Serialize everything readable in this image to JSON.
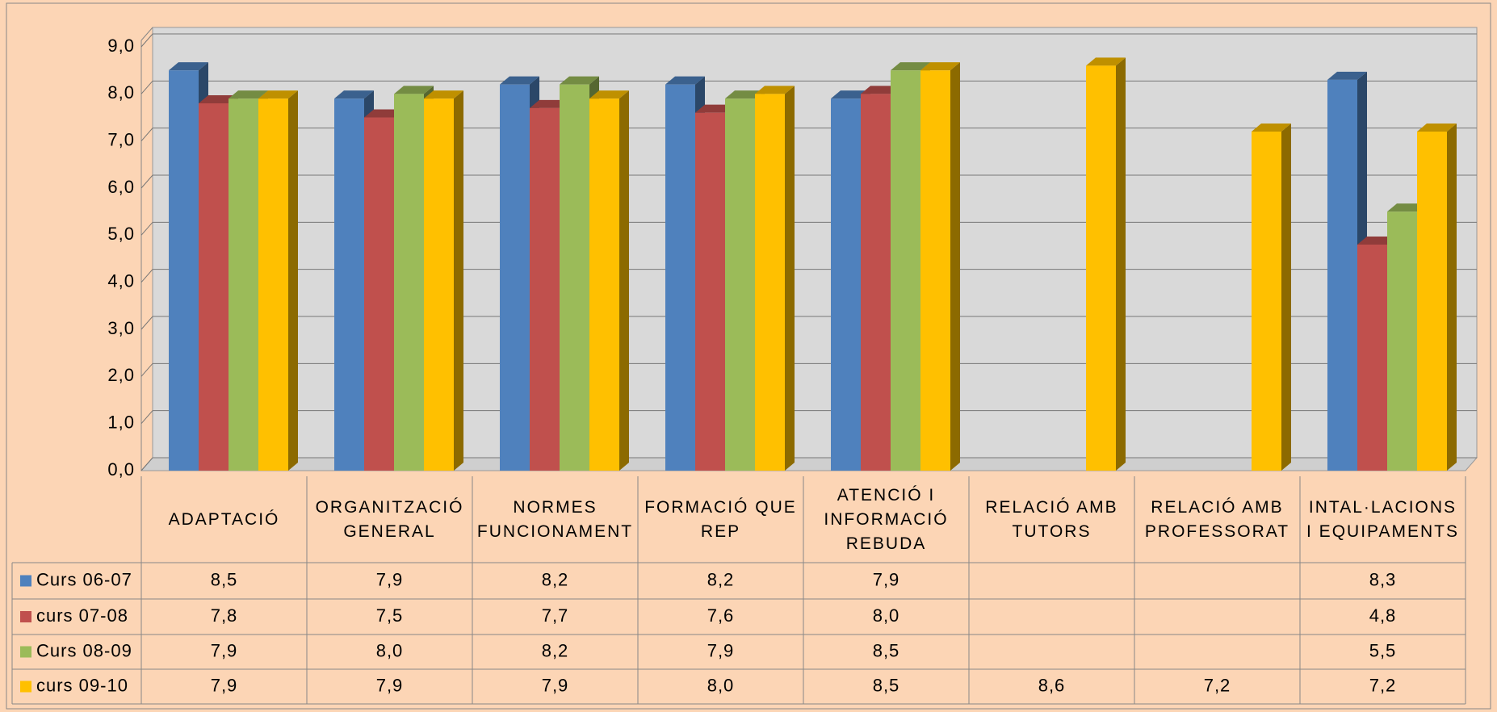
{
  "chart_data": {
    "type": "bar3d",
    "categories": [
      "ADAPTACIÓ",
      "ORGANITZACIÓ GENERAL",
      "NORMES FUNCIONAMENT",
      "FORMACIÓ QUE REP",
      "ATENCIÓ I INFORMACIÓ REBUDA",
      "RELACIÓ AMB TUTORS",
      "RELACIÓ AMB PROFESSORAT",
      "INTAL·LACIONS I EQUIPAMENTS"
    ],
    "series": [
      {
        "name": "Curs 06-07",
        "color": "#4f81bd",
        "values": [
          8.5,
          7.9,
          8.2,
          8.2,
          7.9,
          null,
          null,
          8.3
        ],
        "value_labels": [
          "8,5",
          "7,9",
          "8,2",
          "8,2",
          "7,9",
          null,
          null,
          "8,3"
        ]
      },
      {
        "name": "curs 07-08",
        "color": "#c0504d",
        "values": [
          7.8,
          7.5,
          7.7,
          7.6,
          8.0,
          null,
          null,
          4.8
        ],
        "value_labels": [
          "7,8",
          "7,5",
          "7,7",
          "7,6",
          "8,0",
          null,
          null,
          "4,8"
        ]
      },
      {
        "name": "Curs 08-09",
        "color": "#9bbb59",
        "values": [
          7.9,
          8.0,
          8.2,
          7.9,
          8.5,
          null,
          null,
          5.5
        ],
        "value_labels": [
          "7,9",
          "8,0",
          "8,2",
          "7,9",
          "8,5",
          null,
          null,
          "5,5"
        ]
      },
      {
        "name": "curs 09-10",
        "color": "#ffc000",
        "values": [
          7.9,
          7.9,
          7.9,
          8.0,
          8.5,
          8.6,
          7.2,
          7.2
        ],
        "value_labels": [
          "7,9",
          "7,9",
          "7,9",
          "8,0",
          "8,5",
          "8,6",
          "7,2",
          "7,2"
        ]
      }
    ],
    "ylim": [
      0,
      9
    ],
    "yticks": [
      {
        "value": 0,
        "label": "0,0"
      },
      {
        "value": 1,
        "label": "1,0"
      },
      {
        "value": 2,
        "label": "2,0"
      },
      {
        "value": 3,
        "label": "3,0"
      },
      {
        "value": 4,
        "label": "4,0"
      },
      {
        "value": 5,
        "label": "5,0"
      },
      {
        "value": 6,
        "label": "6,0"
      },
      {
        "value": 7,
        "label": "7,0"
      },
      {
        "value": 8,
        "label": "8,0"
      },
      {
        "value": 9,
        "label": "9,0"
      }
    ],
    "grid": true
  }
}
